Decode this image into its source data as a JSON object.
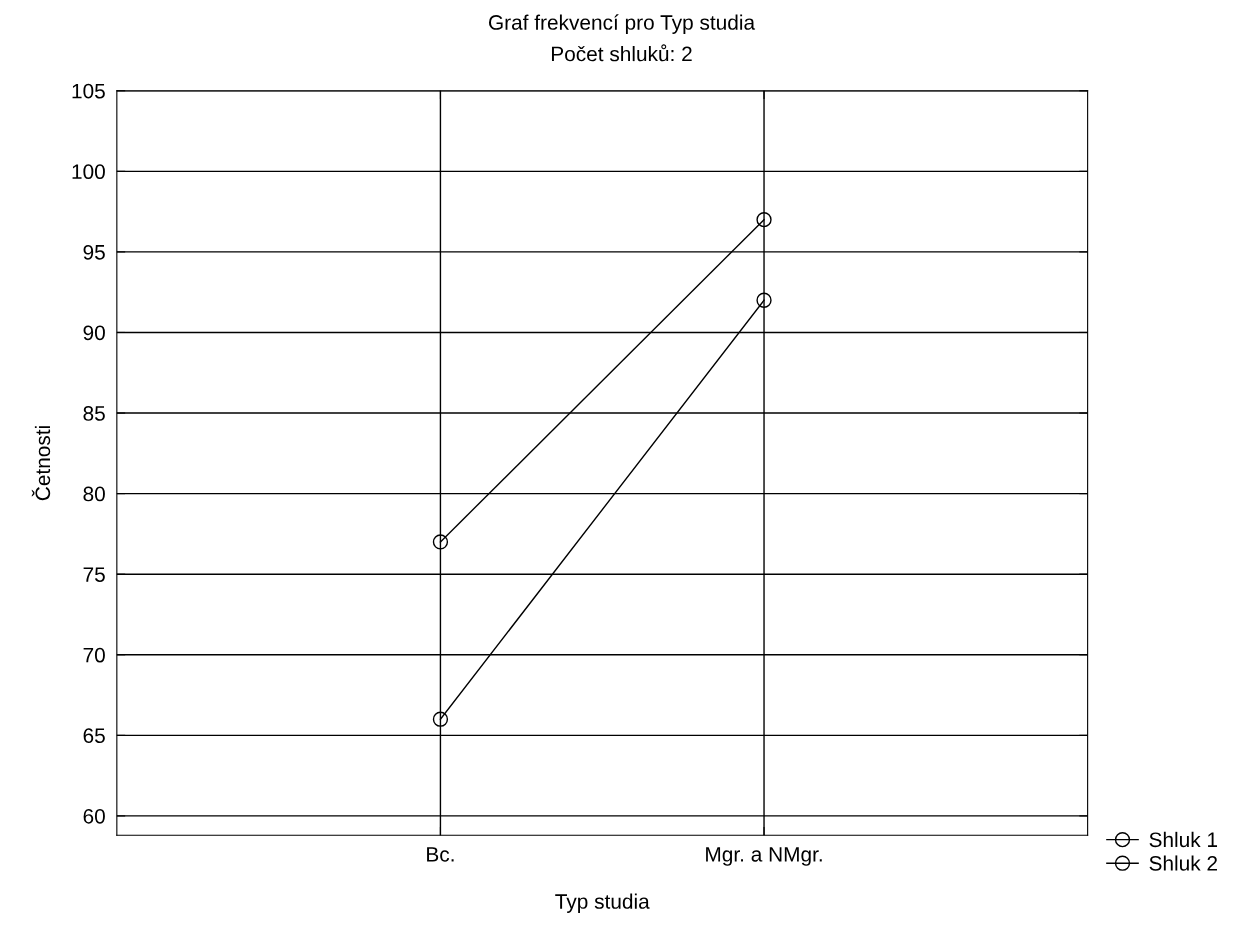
{
  "chart_data": {
    "type": "line",
    "title": "Graf frekvencí pro Typ studia",
    "subtitle": "Počet shluků: 2",
    "xlabel": "Typ studia",
    "ylabel": "Četnosti",
    "categories": [
      "Bc.",
      "Mgr. a NMgr."
    ],
    "series": [
      {
        "name": "Shluk 1",
        "color": "#000000",
        "values": [
          77,
          97
        ]
      },
      {
        "name": "Shluk 2",
        "color": "#000000",
        "values": [
          66,
          92
        ]
      }
    ],
    "ylim": [
      58.8,
      105
    ],
    "yticks": [
      60,
      65,
      70,
      75,
      80,
      85,
      90,
      95,
      100,
      105
    ],
    "grid": true,
    "legend": "bottom right",
    "marker": "circle",
    "line_style": "solid"
  }
}
